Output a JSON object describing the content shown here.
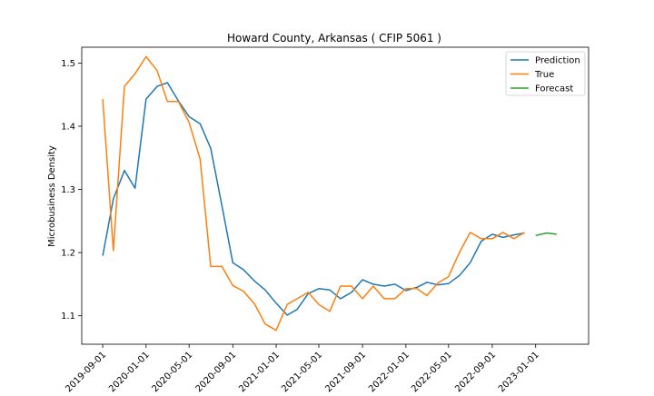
{
  "chart_data": {
    "type": "line",
    "title": "Howard County, Arkansas ( CFIP 5061 )",
    "xlabel": "",
    "ylabel": "Microbusiness Density",
    "xlim": [
      "2019-07-04",
      "2023-05-30"
    ],
    "ylim": [
      1.055,
      1.525
    ],
    "x_ticks": [
      "2019-09-01",
      "2020-01-01",
      "2020-05-01",
      "2020-09-01",
      "2021-01-01",
      "2021-05-01",
      "2021-09-01",
      "2022-01-01",
      "2022-05-01",
      "2022-09-01",
      "2023-01-01"
    ],
    "y_ticks": [
      1.1,
      1.2,
      1.3,
      1.4,
      1.5
    ],
    "y_tick_labels": [
      "1.1",
      "1.2",
      "1.3",
      "1.4",
      "1.5"
    ],
    "legend_position": "top-right",
    "grid": false,
    "series": [
      {
        "name": "Prediction",
        "color": "#1f77b4",
        "x": [
          "2019-09-01",
          "2019-10-01",
          "2019-11-01",
          "2019-12-01",
          "2020-01-01",
          "2020-02-01",
          "2020-03-01",
          "2020-04-01",
          "2020-05-01",
          "2020-06-01",
          "2020-07-01",
          "2020-08-01",
          "2020-09-01",
          "2020-10-01",
          "2020-11-01",
          "2020-12-01",
          "2021-01-01",
          "2021-02-01",
          "2021-03-01",
          "2021-04-01",
          "2021-05-01",
          "2021-06-01",
          "2021-07-01",
          "2021-08-01",
          "2021-09-01",
          "2021-10-01",
          "2021-11-01",
          "2021-12-01",
          "2022-01-01",
          "2022-02-01",
          "2022-03-01",
          "2022-04-01",
          "2022-05-01",
          "2022-06-01",
          "2022-07-01",
          "2022-08-01",
          "2022-09-01",
          "2022-10-01",
          "2022-11-01",
          "2022-12-01"
        ],
        "y": [
          1.195,
          1.285,
          1.33,
          1.302,
          1.443,
          1.463,
          1.469,
          1.44,
          1.415,
          1.404,
          1.365,
          1.275,
          1.184,
          1.173,
          1.155,
          1.141,
          1.12,
          1.101,
          1.11,
          1.135,
          1.143,
          1.141,
          1.127,
          1.137,
          1.157,
          1.15,
          1.147,
          1.15,
          1.14,
          1.145,
          1.153,
          1.149,
          1.151,
          1.164,
          1.184,
          1.218,
          1.229,
          1.224,
          1.228,
          1.231
        ]
      },
      {
        "name": "True",
        "color": "#ff7f0e",
        "x": [
          "2019-09-01",
          "2019-10-01",
          "2019-11-01",
          "2019-12-01",
          "2020-01-01",
          "2020-02-01",
          "2020-03-01",
          "2020-04-01",
          "2020-05-01",
          "2020-06-01",
          "2020-07-01",
          "2020-08-01",
          "2020-09-01",
          "2020-10-01",
          "2020-11-01",
          "2020-12-01",
          "2021-01-01",
          "2021-02-01",
          "2021-03-01",
          "2021-04-01",
          "2021-05-01",
          "2021-06-01",
          "2021-07-01",
          "2021-08-01",
          "2021-09-01",
          "2021-10-01",
          "2021-11-01",
          "2021-12-01",
          "2022-01-01",
          "2022-02-01",
          "2022-03-01",
          "2022-04-01",
          "2022-05-01",
          "2022-06-01",
          "2022-07-01",
          "2022-08-01",
          "2022-09-01",
          "2022-10-01",
          "2022-11-01",
          "2022-12-01"
        ],
        "y": [
          1.443,
          1.203,
          1.463,
          1.483,
          1.51,
          1.488,
          1.439,
          1.439,
          1.406,
          1.348,
          1.178,
          1.178,
          1.148,
          1.139,
          1.119,
          1.087,
          1.077,
          1.118,
          1.127,
          1.137,
          1.118,
          1.107,
          1.147,
          1.147,
          1.127,
          1.147,
          1.127,
          1.127,
          1.143,
          1.143,
          1.132,
          1.152,
          1.162,
          1.201,
          1.232,
          1.222,
          1.222,
          1.232,
          1.222,
          1.232
        ]
      },
      {
        "name": "Forecast",
        "color": "#2ca02c",
        "x": [
          "2023-01-01",
          "2023-02-01",
          "2023-03-01"
        ],
        "y": [
          1.227,
          1.231,
          1.229
        ]
      }
    ]
  }
}
